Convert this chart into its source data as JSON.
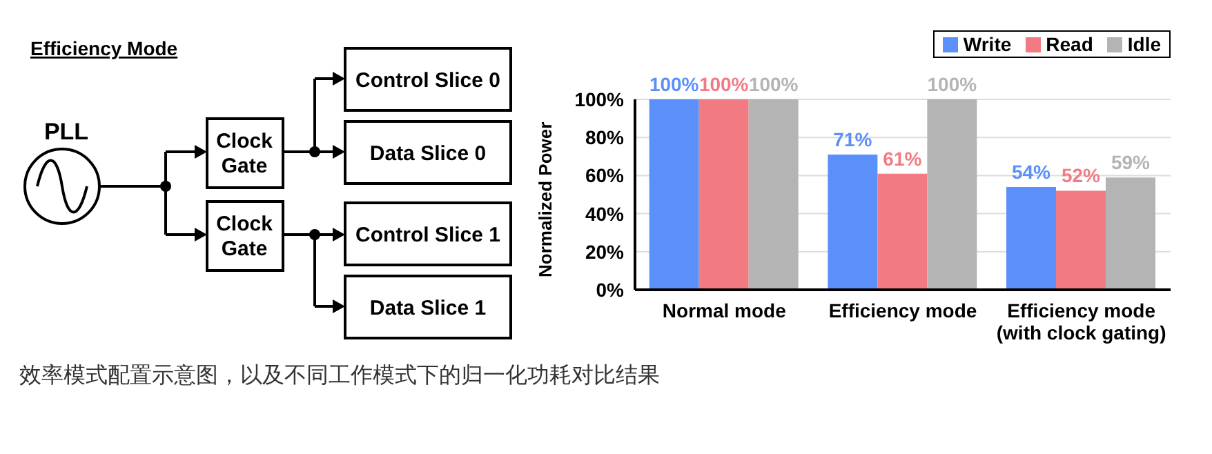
{
  "chart_data": [
    {
      "type": "other",
      "title": "Efficiency Mode",
      "annotations": [
        "PLL",
        "Clock Gate",
        "Clock Gate",
        "Control Slice 0",
        "Data Slice 0",
        "Control Slice 1",
        "Data Slice 1",
        "效率模式配置示意图，以及不同工作模式下的归一化功耗对比结果"
      ]
    },
    {
      "type": "bar",
      "ylabel": "Normalized Power",
      "categories": [
        "Normal mode",
        "Efficiency mode",
        "Efficiency mode (with clock gating)"
      ],
      "series": [
        {
          "name": "Write",
          "color": "#5b8ff9",
          "values": [
            100,
            71,
            54
          ],
          "value_labels": [
            "100%",
            "71%",
            "54%"
          ]
        },
        {
          "name": "Read",
          "color": "#f27b83",
          "values": [
            100,
            61,
            52
          ],
          "value_labels": [
            "100%",
            "61%",
            "52%"
          ]
        },
        {
          "name": "Idle",
          "color": "#b4b4b4",
          "values": [
            100,
            100,
            59
          ],
          "value_labels": [
            "100%",
            "100%",
            "59%"
          ]
        }
      ],
      "ylim": [
        0,
        100
      ],
      "yticks": [
        {
          "value": 0,
          "label": "0%"
        },
        {
          "value": 20,
          "label": "20%"
        },
        {
          "value": 40,
          "label": "40%"
        },
        {
          "value": 60,
          "label": "60%"
        },
        {
          "value": 80,
          "label": "80%"
        },
        {
          "value": 100,
          "label": "100%"
        }
      ],
      "grid": "y",
      "legend": "top right"
    }
  ]
}
